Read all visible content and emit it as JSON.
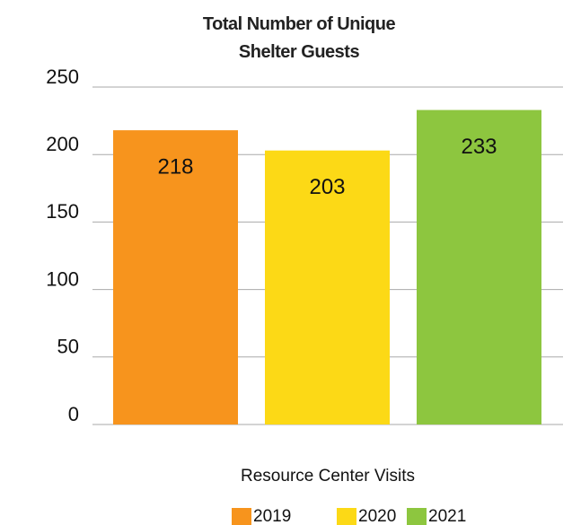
{
  "chart_data": {
    "type": "bar",
    "title": "Total Number of Unique Shelter Guests",
    "categories": [
      "Resource Center Visits"
    ],
    "series": [
      {
        "name": "2019",
        "color": "#f7941d",
        "values": [
          218
        ]
      },
      {
        "name": "2020",
        "color": "#fcd916",
        "values": [
          203
        ]
      },
      {
        "name": "2021",
        "color": "#8dc63f",
        "values": [
          233
        ]
      }
    ],
    "ylim": [
      0,
      250
    ],
    "yticks": [
      0,
      50,
      100,
      150,
      200,
      250
    ],
    "grid": true,
    "legend": "bottom"
  }
}
